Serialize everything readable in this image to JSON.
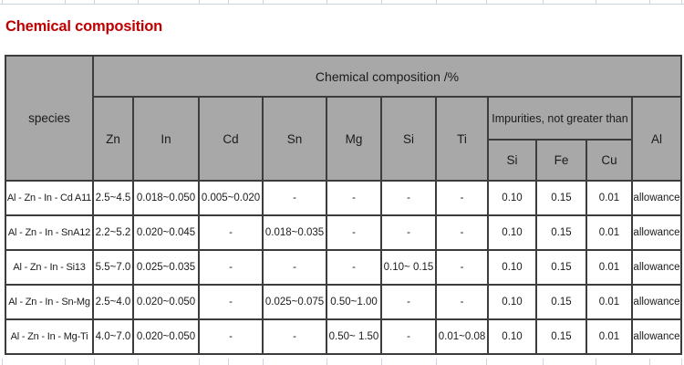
{
  "title": "Chemical composition",
  "colors": {
    "title_red": "#c00000",
    "header_bg": "#a8a8a8",
    "border_dark": "#3c3c3c",
    "grid_faint": "#ccd3e2",
    "text": "#1b1b1b",
    "cell_bg": "#ffffff"
  },
  "table": {
    "species_header": "species",
    "group_header": "Chemical composition /%",
    "impurities_header": "Impurities, not greater than",
    "al_header": "Al",
    "columns": [
      "Zn",
      "In",
      "Cd",
      "Sn",
      "Mg",
      "Si",
      "Ti"
    ],
    "impurity_columns": [
      "Si",
      "Fe",
      "Cu"
    ],
    "rows": [
      {
        "species": "Al - Zn - In - Cd A11",
        "cells": [
          "2.5~4.5",
          "0.018~0.050",
          "0.005~0.020",
          "-",
          "-",
          "-",
          "-",
          "0.10",
          "0.15",
          "0.01",
          "allowance"
        ]
      },
      {
        "species": "Al - Zn - In - SnA12",
        "cells": [
          "2.2~5.2",
          "0.020~0.045",
          "-",
          "0.018~0.035",
          "-",
          "-",
          "-",
          "0.10",
          "0.15",
          "0.01",
          "allowance"
        ]
      },
      {
        "species": "Al - Zn - In - Si13",
        "cells": [
          "5.5~7.0",
          "0.025~0.035",
          "-",
          "-",
          "-",
          "0.10~ 0.15",
          "-",
          "0.10",
          "0.15",
          "0.01",
          "allowance"
        ]
      },
      {
        "species": "Al - Zn - In - Sn-Mg",
        "cells": [
          "2.5~4.0",
          "0.020~0.050",
          "-",
          "0.025~0.075",
          "0.50~1.00",
          "-",
          "-",
          "0.10",
          "0.15",
          "0.01",
          "allowance"
        ]
      },
      {
        "species": "Al - Zn - In - Mg-Ti",
        "cells": [
          "4.0~7.0",
          "0.020~0.050",
          "-",
          "-",
          "0.50~ 1.50",
          "-",
          "0.01~0.08",
          "0.10",
          "0.15",
          "0.01",
          "allowance"
        ]
      }
    ]
  }
}
